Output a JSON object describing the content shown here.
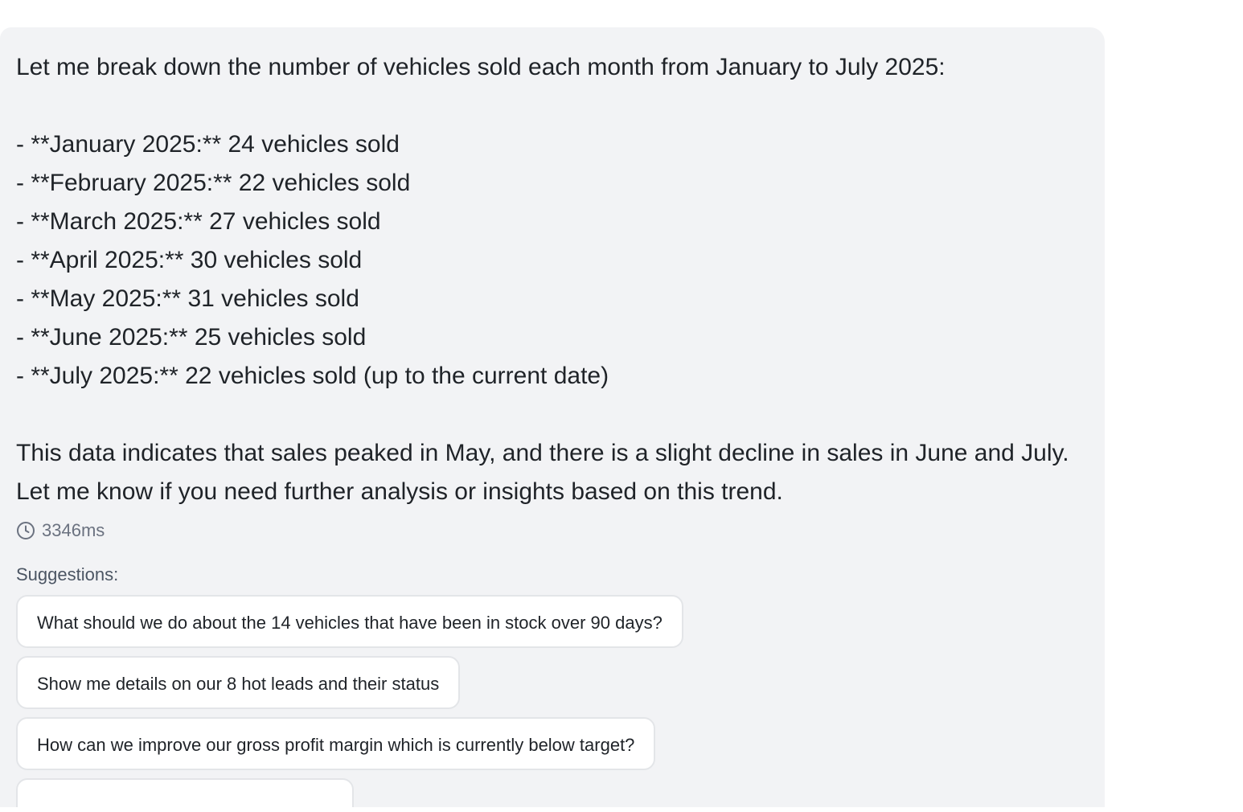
{
  "message": {
    "intro": "Let me break down the number of vehicles sold each month from January to July 2025:",
    "items": [
      "- **January 2025:** 24 vehicles sold",
      "- **February 2025:** 22 vehicles sold",
      "- **March 2025:** 27 vehicles sold",
      "- **April 2025:** 30 vehicles sold",
      "- **May 2025:** 31 vehicles sold",
      "- **June 2025:** 25 vehicles sold",
      "- **July 2025:** 22 vehicles sold (up to the current date)"
    ],
    "summary": "This data indicates that sales peaked in May, and there is a slight decline in sales in June and July. Let me know if you need further analysis or insights based on this trend."
  },
  "timing": {
    "icon": "clock-icon",
    "value": "3346ms"
  },
  "suggestions": {
    "label": "Suggestions:",
    "items": [
      "What should we do about the 14 vehicles that have been in stock over 90 days?",
      "Show me details on our 8 hot leads and their status",
      "How can we improve our gross profit margin which is currently below target?"
    ]
  },
  "colors": {
    "bubble_bg": "#f2f3f5",
    "text": "#1f2328",
    "muted": "#6b7280",
    "chip_border": "#e3e5e8"
  }
}
